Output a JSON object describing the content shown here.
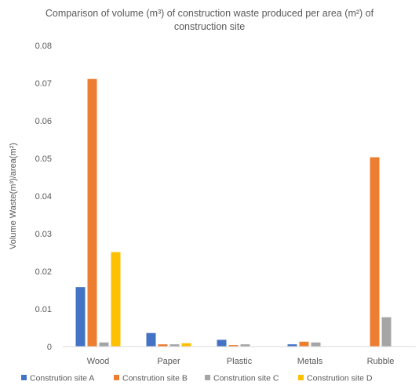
{
  "chart_data": {
    "type": "bar",
    "title": "Comparison of volume (m³) of construction waste produced per area (m²) of construction site",
    "title_lines": [
      "Comparison of volume (m³) of construction waste produced per area (m²) of",
      "construction site"
    ],
    "xlabel": "",
    "ylabel": "Volume Waste(m³)/area(m²)",
    "ylim": [
      0,
      0.08
    ],
    "yticks": [
      "0",
      "0.01",
      "0.02",
      "0.03",
      "0.04",
      "0.05",
      "0.06",
      "0.07",
      "0.08"
    ],
    "grid": false,
    "legend_position": "bottom",
    "categories": [
      "Wood",
      "Paper",
      "Plastic",
      "Metals",
      "Rubble"
    ],
    "series": [
      {
        "name": "Constrution site A",
        "color": "#4472C4",
        "values": [
          0.0158,
          0.0036,
          0.0018,
          0.0006,
          0
        ]
      },
      {
        "name": "Constrution site B",
        "color": "#ED7D31",
        "values": [
          0.0711,
          0.0006,
          0.0004,
          0.0013,
          0.0503
        ]
      },
      {
        "name": "Constrution site C",
        "color": "#A5A5A5",
        "values": [
          0.0011,
          0.0006,
          0.0006,
          0.0011,
          0.0078
        ]
      },
      {
        "name": "Constrution site D",
        "color": "#FFC000",
        "values": [
          0.0251,
          0.0009,
          0,
          0,
          0
        ]
      }
    ]
  }
}
